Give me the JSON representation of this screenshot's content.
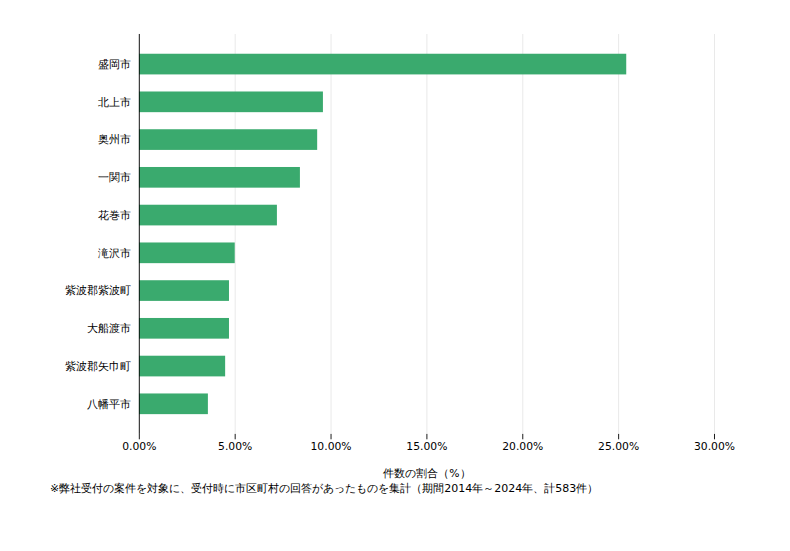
{
  "chart_data": {
    "type": "bar",
    "orientation": "horizontal",
    "categories": [
      "盛岡市",
      "北上市",
      "奥州市",
      "一関市",
      "花巻市",
      "滝沢市",
      "紫波郡紫波町",
      "大船渡市",
      "紫波郡矢巾町",
      "八幡平市"
    ],
    "values": [
      0.2542,
      0.096,
      0.093,
      0.084,
      0.072,
      0.05,
      0.047,
      0.047,
      0.045,
      0.036
    ],
    "color": "#3aaa6e",
    "xlabel": "件数の割合（%）",
    "xlim": [
      0,
      0.3
    ],
    "xticks": [
      {
        "value": 0.0,
        "label": "0.00%"
      },
      {
        "value": 0.05,
        "label": "5.00%"
      },
      {
        "value": 0.1,
        "label": "10.00%"
      },
      {
        "value": 0.15,
        "label": "15.00%"
      },
      {
        "value": 0.2,
        "label": "20.00%"
      },
      {
        "value": 0.25,
        "label": "25.00%"
      },
      {
        "value": 0.3,
        "label": "30.00%"
      }
    ],
    "grid": true,
    "footnote": "※弊社受付の案件を対象に、受付時に市区町村の回答があったものを集計（期間2014年～2024年、計583件）"
  }
}
